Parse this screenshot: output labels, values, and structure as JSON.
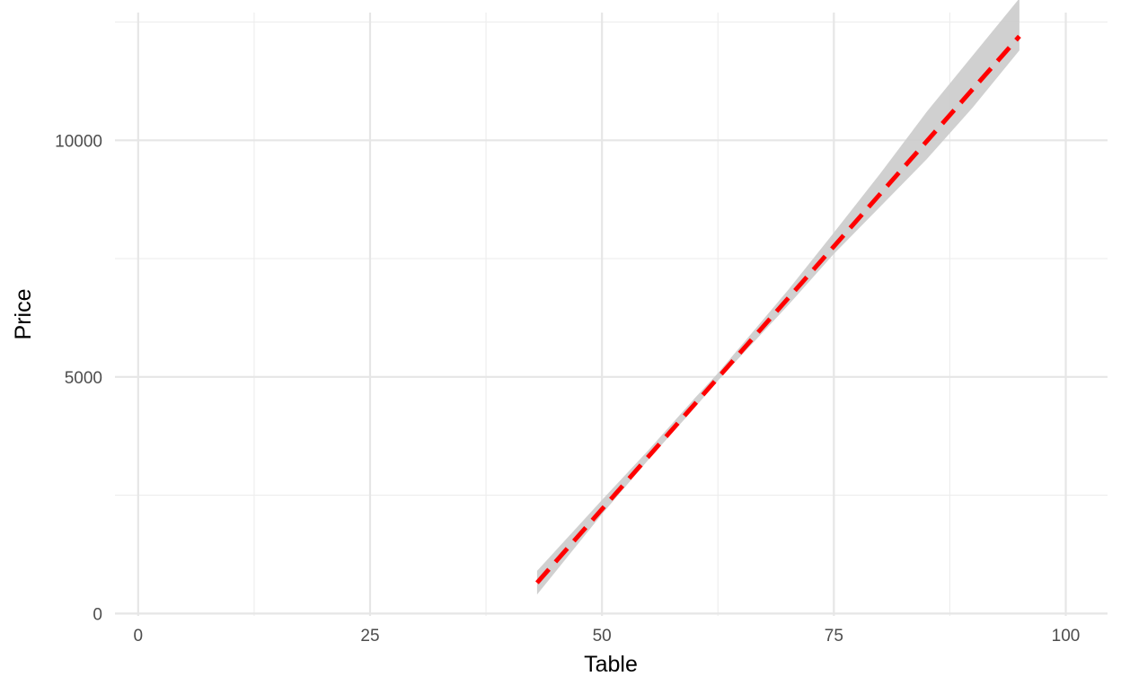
{
  "chart_data": {
    "type": "line",
    "title": "",
    "xlabel": "Table",
    "ylabel": "Price",
    "xlim": [
      -2.5,
      104.5
    ],
    "ylim": [
      -50,
      12700
    ],
    "x_ticks": [
      0,
      25,
      50,
      75,
      100
    ],
    "x_tick_labels": [
      "0",
      "25",
      "50",
      "75",
      "100"
    ],
    "x_minor_ticks": [
      12.5,
      37.5,
      62.5,
      87.5
    ],
    "y_ticks": [
      0,
      5000,
      10000
    ],
    "y_tick_labels": [
      "0",
      "5000",
      "10000"
    ],
    "y_minor_ticks": [
      2500,
      7500,
      12500
    ],
    "grid": true,
    "legend": "none",
    "series": [
      {
        "style": "dashed",
        "color": "#ff0000",
        "x": [
          43,
          95
        ],
        "y": [
          650,
          12200
        ],
        "band_color": "#cccccc",
        "band": {
          "x": [
            43,
            50,
            55,
            60,
            62.5,
            65,
            70,
            75,
            80,
            85,
            90,
            95
          ],
          "lower": [
            400,
            2100,
            3250,
            4350,
            4920,
            5450,
            6500,
            7600,
            8600,
            9600,
            10700,
            11900
          ],
          "upper": [
            900,
            2400,
            3450,
            4550,
            5080,
            5660,
            6820,
            8050,
            9300,
            10600,
            11800,
            13000
          ]
        }
      }
    ]
  }
}
